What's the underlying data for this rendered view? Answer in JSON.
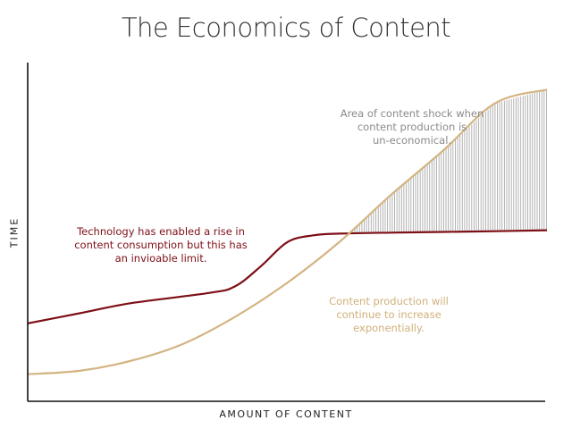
{
  "title": "The Economics of Content",
  "chart_data": {
    "type": "line",
    "xlabel": "AMOUNT OF CONTENT",
    "ylabel": "TIME",
    "grid": false,
    "series": [
      {
        "color": "#7d0f16",
        "x": [
          0,
          10,
          20,
          35,
          40,
          45,
          50,
          55,
          60,
          70,
          80,
          90,
          100
        ],
        "values": [
          23,
          26,
          29,
          32,
          34,
          40,
          47,
          49,
          49.5,
          49.8,
          50,
          50.2,
          50.5
        ]
      },
      {
        "color": "#d4b483",
        "x": [
          0,
          10,
          20,
          30,
          40,
          50,
          60,
          70,
          80,
          90,
          100
        ],
        "values": [
          8,
          9,
          12,
          17,
          25,
          35,
          47,
          61,
          74,
          88,
          92
        ]
      }
    ],
    "annotations": [
      {
        "text": "Area of content shock when\ncontent production is\nun-economical.",
        "color": "#8a8a8a"
      },
      {
        "text": "Technology has enabled a rise in\ncontent consumption but this has\nan invioable limit.",
        "color": "#7d0f16"
      },
      {
        "text": "Content production will\ncontinue to increase\nexponentially.",
        "color": "#d4b483"
      }
    ]
  }
}
